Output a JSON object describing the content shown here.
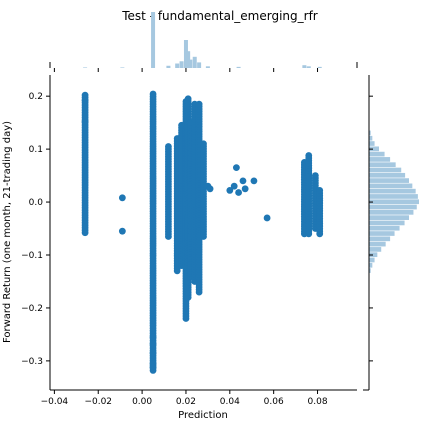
{
  "chart_data": {
    "type": "scatter",
    "title": "Test - fundamental_emerging_rfr",
    "xlabel": "Prediction",
    "ylabel": "Forward Return (one month, 21-trading day)",
    "xlim": [
      -0.042,
      0.098
    ],
    "ylim": [
      -0.355,
      0.24
    ],
    "xticks": [
      -0.04,
      -0.02,
      0.0,
      0.02,
      0.04,
      0.06,
      0.08
    ],
    "xtick_labels": [
      "−0.04",
      "−0.02",
      "0.00",
      "0.02",
      "0.04",
      "0.06",
      "0.08"
    ],
    "yticks": [
      0.2,
      0.1,
      0.0,
      -0.1,
      -0.2,
      -0.3
    ],
    "ytick_labels": [
      "0.2",
      "0.1",
      "0.0",
      "−0.1",
      "−0.2",
      "−0.3"
    ],
    "grid": false,
    "point_color": "#1f77b4",
    "hist_color": "#a6c8e0",
    "columns": [
      {
        "x": -0.026,
        "ymin": -0.058,
        "ymax": 0.202,
        "extra": [
          0.192,
          0.152
        ]
      },
      {
        "x": 0.005,
        "ymin": -0.318,
        "ymax": 0.204,
        "extra": [
          -0.285,
          -0.268,
          -0.255,
          -0.305,
          -0.312
        ]
      },
      {
        "x": 0.012,
        "ymin": -0.065,
        "ymax": 0.105,
        "extra": []
      },
      {
        "x": 0.016,
        "ymin": -0.13,
        "ymax": 0.12,
        "extra": []
      },
      {
        "x": 0.018,
        "ymin": -0.12,
        "ymax": 0.145,
        "extra": []
      },
      {
        "x": 0.02,
        "ymin": -0.22,
        "ymax": 0.19,
        "extra": []
      },
      {
        "x": 0.021,
        "ymin": -0.18,
        "ymax": 0.195,
        "extra": []
      },
      {
        "x": 0.022,
        "ymin": -0.14,
        "ymax": 0.15,
        "extra": []
      },
      {
        "x": 0.024,
        "ymin": -0.15,
        "ymax": 0.185,
        "extra": []
      },
      {
        "x": 0.026,
        "ymin": -0.17,
        "ymax": 0.185,
        "extra": []
      },
      {
        "x": 0.028,
        "ymin": -0.065,
        "ymax": 0.11,
        "extra": []
      },
      {
        "x": 0.074,
        "ymin": -0.06,
        "ymax": 0.075,
        "extra": []
      },
      {
        "x": 0.076,
        "ymin": -0.06,
        "ymax": 0.088,
        "extra": []
      },
      {
        "x": 0.079,
        "ymin": -0.05,
        "ymax": 0.05,
        "extra": []
      },
      {
        "x": 0.081,
        "ymin": -0.06,
        "ymax": 0.022,
        "extra": []
      }
    ],
    "points": [
      {
        "x": -0.009,
        "y": 0.008
      },
      {
        "x": -0.009,
        "y": -0.055
      },
      {
        "x": 0.03,
        "y": 0.03
      },
      {
        "x": 0.031,
        "y": 0.025
      },
      {
        "x": 0.04,
        "y": 0.022
      },
      {
        "x": 0.042,
        "y": 0.03
      },
      {
        "x": 0.043,
        "y": 0.065
      },
      {
        "x": 0.044,
        "y": 0.018
      },
      {
        "x": 0.046,
        "y": 0.04
      },
      {
        "x": 0.047,
        "y": 0.025
      },
      {
        "x": 0.051,
        "y": 0.04
      },
      {
        "x": 0.057,
        "y": -0.03
      }
    ],
    "x_hist": {
      "bins": [
        -0.026,
        -0.009,
        0.005,
        0.012,
        0.016,
        0.018,
        0.02,
        0.021,
        0.022,
        0.024,
        0.026,
        0.03,
        0.044,
        0.074,
        0.076,
        0.081
      ],
      "counts": [
        1,
        1,
        100,
        4,
        8,
        12,
        50,
        30,
        15,
        20,
        10,
        3,
        2,
        5,
        3,
        2
      ]
    },
    "y_hist": {
      "bins": [
        0.13,
        0.12,
        0.11,
        0.1,
        0.09,
        0.08,
        0.07,
        0.06,
        0.05,
        0.04,
        0.03,
        0.02,
        0.01,
        0.0,
        -0.01,
        -0.02,
        -0.03,
        -0.04,
        -0.05,
        -0.06,
        -0.07,
        -0.08,
        -0.09,
        -0.1,
        -0.11,
        -0.12,
        -0.13
      ],
      "counts": [
        3,
        6,
        10,
        18,
        28,
        38,
        48,
        58,
        65,
        72,
        78,
        84,
        88,
        90,
        86,
        80,
        72,
        64,
        55,
        46,
        38,
        30,
        22,
        15,
        10,
        6,
        3
      ]
    }
  }
}
